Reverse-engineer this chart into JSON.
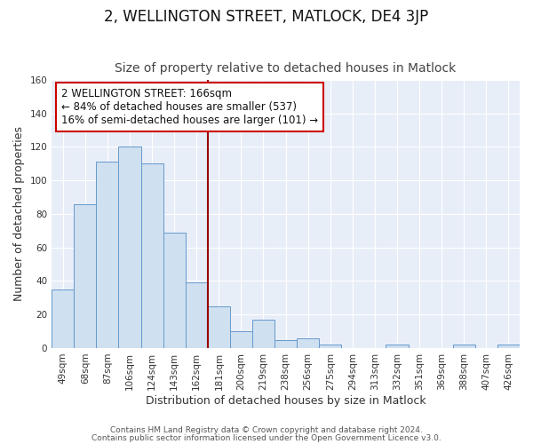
{
  "title": "2, WELLINGTON STREET, MATLOCK, DE4 3JP",
  "subtitle": "Size of property relative to detached houses in Matlock",
  "xlabel": "Distribution of detached houses by size in Matlock",
  "ylabel": "Number of detached properties",
  "bar_labels": [
    "49sqm",
    "68sqm",
    "87sqm",
    "106sqm",
    "124sqm",
    "143sqm",
    "162sqm",
    "181sqm",
    "200sqm",
    "219sqm",
    "238sqm",
    "256sqm",
    "275sqm",
    "294sqm",
    "313sqm",
    "332sqm",
    "351sqm",
    "369sqm",
    "388sqm",
    "407sqm",
    "426sqm"
  ],
  "bar_values": [
    35,
    86,
    111,
    120,
    110,
    69,
    39,
    25,
    10,
    17,
    5,
    6,
    2,
    0,
    0,
    2,
    0,
    0,
    2,
    0,
    2
  ],
  "bar_color": "#cfe0f0",
  "bar_edge_color": "#6699cc",
  "vline_color": "#990000",
  "annotation_text": "2 WELLINGTON STREET: 166sqm\n← 84% of detached houses are smaller (537)\n16% of semi-detached houses are larger (101) →",
  "annotation_box_color": "white",
  "annotation_box_edge": "#cc0000",
  "ylim": [
    0,
    160
  ],
  "yticks": [
    0,
    20,
    40,
    60,
    80,
    100,
    120,
    140,
    160
  ],
  "footer_line1": "Contains HM Land Registry data © Crown copyright and database right 2024.",
  "footer_line2": "Contains public sector information licensed under the Open Government Licence v3.0.",
  "bg_color": "#ffffff",
  "plot_bg_color": "#e8eef8",
  "grid_color": "#ffffff",
  "title_fontsize": 12,
  "subtitle_fontsize": 10,
  "axis_label_fontsize": 9,
  "tick_fontsize": 7.5,
  "annotation_fontsize": 8.5,
  "footer_fontsize": 6.5
}
